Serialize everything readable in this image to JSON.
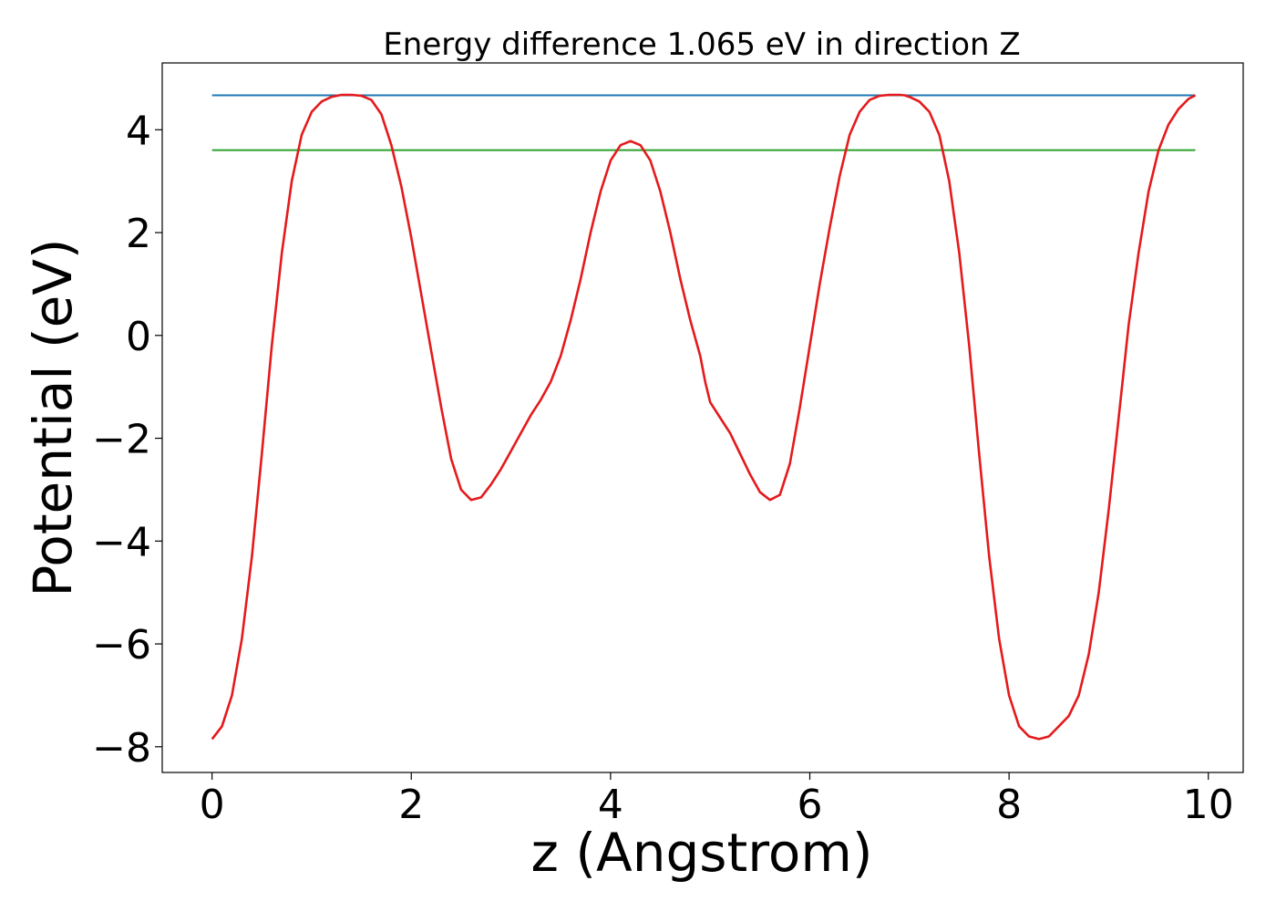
{
  "chart_data": {
    "type": "line",
    "title": "Energy difference 1.065 eV in direction Z",
    "xlabel": "z (Angstrom)",
    "ylabel": "Potential (eV)",
    "xlim": [
      -0.5,
      10.35
    ],
    "ylim": [
      -8.5,
      5.3
    ],
    "xticks": [
      0,
      2,
      4,
      6,
      8,
      10
    ],
    "yticks": [
      -8,
      -6,
      -4,
      -2,
      0,
      2,
      4
    ],
    "xtick_labels": [
      "0",
      "2",
      "4",
      "6",
      "8",
      "10"
    ],
    "ytick_labels": [
      "−8",
      "−6",
      "−4",
      "−2",
      "0",
      "2",
      "4"
    ],
    "grid": false,
    "series": [
      {
        "color": "#1f77b4",
        "x": [
          0,
          9.87
        ],
        "y": [
          4.67,
          4.67
        ]
      },
      {
        "color": "#2ca02c",
        "x": [
          0,
          9.87
        ],
        "y": [
          3.605,
          3.605
        ]
      },
      {
        "color": "#e41a1c",
        "x": [
          0,
          0.1,
          0.2,
          0.3,
          0.4,
          0.5,
          0.6,
          0.7,
          0.8,
          0.9,
          1.0,
          1.1,
          1.2,
          1.3,
          1.4,
          1.5,
          1.6,
          1.7,
          1.8,
          1.9,
          2.0,
          2.1,
          2.2,
          2.3,
          2.4,
          2.5,
          2.6,
          2.7,
          2.8,
          2.9,
          3.0,
          3.1,
          3.2,
          3.3,
          3.4,
          3.5,
          3.6,
          3.7,
          3.8,
          3.9,
          4.0,
          4.1,
          4.2,
          4.3,
          4.4,
          4.5,
          4.6,
          4.7,
          4.8,
          4.9,
          4.95,
          5.0,
          5.1,
          5.2,
          5.3,
          5.4,
          5.5,
          5.6,
          5.7,
          5.8,
          5.9,
          6.0,
          6.1,
          6.2,
          6.3,
          6.4,
          6.5,
          6.6,
          6.7,
          6.8,
          6.9,
          6.95,
          7.0,
          7.1,
          7.2,
          7.3,
          7.4,
          7.5,
          7.6,
          7.7,
          7.8,
          7.9,
          8.0,
          8.1,
          8.2,
          8.3,
          8.4,
          8.45,
          8.5,
          8.6,
          8.7,
          8.8,
          8.9,
          9.0,
          9.1,
          9.2,
          9.3,
          9.4,
          9.5,
          9.6,
          9.7,
          9.8,
          9.87
        ],
        "y": [
          -7.85,
          -7.6,
          -7.0,
          -5.9,
          -4.3,
          -2.3,
          -0.2,
          1.6,
          3.0,
          3.9,
          4.35,
          4.55,
          4.64,
          4.68,
          4.68,
          4.66,
          4.58,
          4.3,
          3.7,
          2.9,
          1.9,
          0.8,
          -0.3,
          -1.4,
          -2.4,
          -3.0,
          -3.2,
          -3.15,
          -2.9,
          -2.6,
          -2.25,
          -1.9,
          -1.55,
          -1.25,
          -0.9,
          -0.4,
          0.3,
          1.1,
          2.0,
          2.8,
          3.4,
          3.7,
          3.78,
          3.7,
          3.4,
          2.8,
          2.0,
          1.1,
          0.3,
          -0.4,
          -0.9,
          -1.3,
          -1.6,
          -1.9,
          -2.3,
          -2.7,
          -3.05,
          -3.2,
          -3.1,
          -2.5,
          -1.4,
          -0.2,
          1.0,
          2.1,
          3.1,
          3.9,
          4.35,
          4.58,
          4.66,
          4.68,
          4.68,
          4.67,
          4.64,
          4.55,
          4.35,
          3.9,
          3.0,
          1.6,
          -0.2,
          -2.3,
          -4.3,
          -5.9,
          -7.0,
          -7.6,
          -7.8,
          -7.85,
          -7.8,
          -7.7,
          -7.6,
          -7.4,
          -7.0,
          -6.2,
          -5.0,
          -3.4,
          -1.6,
          0.2,
          1.6,
          2.8,
          3.6,
          4.1,
          4.4,
          4.6,
          4.67
        ]
      }
    ]
  }
}
